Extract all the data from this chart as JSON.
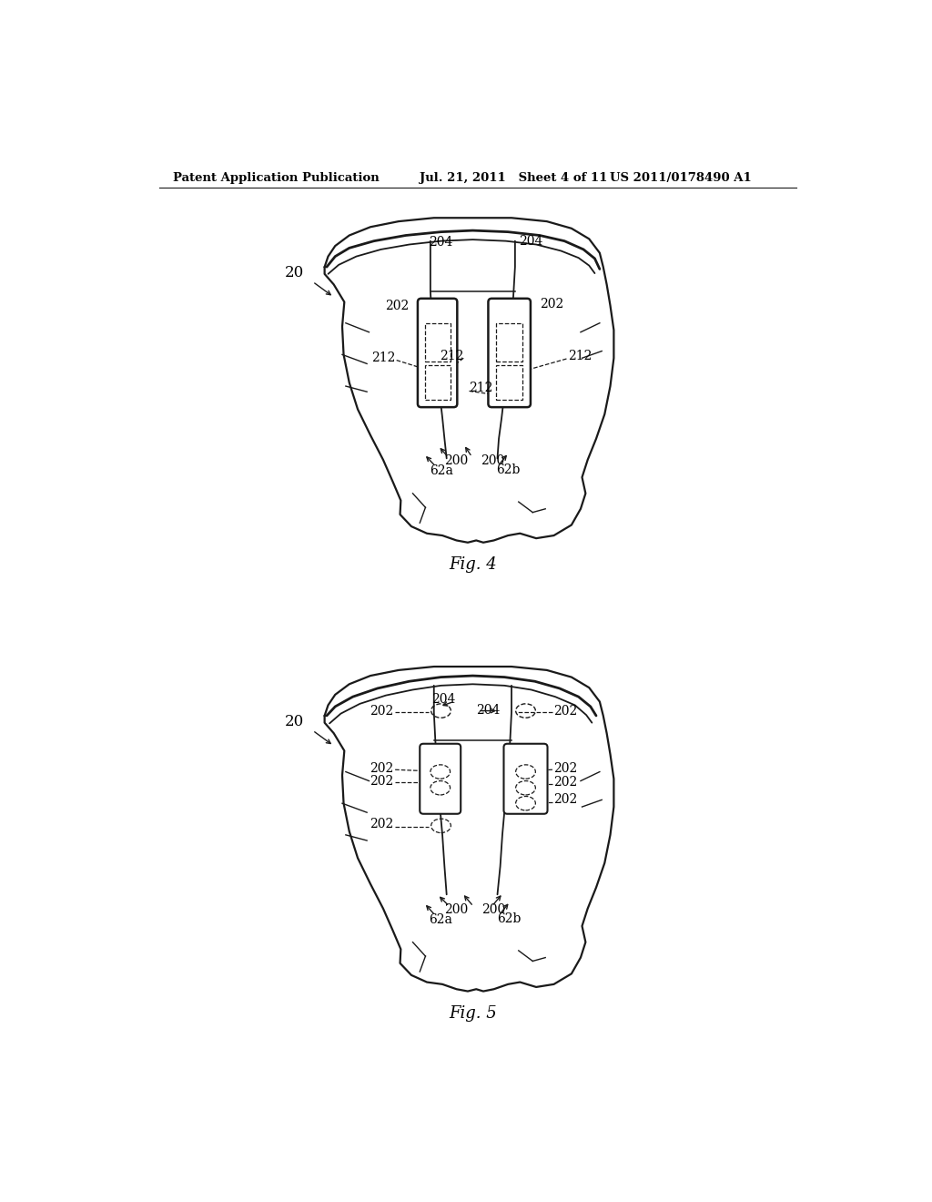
{
  "background_color": "#ffffff",
  "header_left": "Patent Application Publication",
  "header_center": "Jul. 21, 2011   Sheet 4 of 11",
  "header_right": "US 2011/0178490 A1",
  "fig4_caption": "Fig. 4",
  "fig5_caption": "Fig. 5",
  "line_color": "#1a1a1a",
  "text_color": "#000000"
}
